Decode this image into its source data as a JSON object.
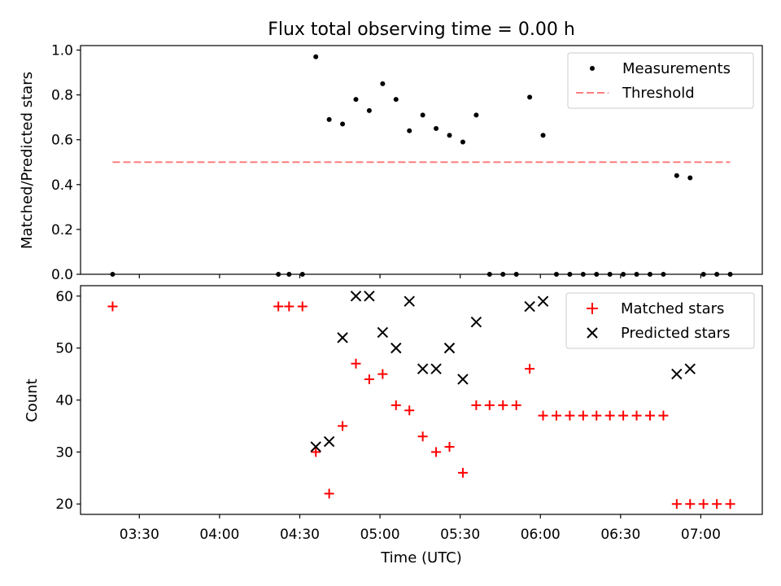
{
  "chart_data": [
    {
      "type": "scatter",
      "title": "Flux total observing time = 0.00 h",
      "ylabel": "Matched/Predicted stars",
      "ylim": [
        0,
        1.02
      ],
      "yticks": [
        "0.0",
        "0.2",
        "0.4",
        "0.6",
        "0.8",
        "1.0"
      ],
      "grid": false,
      "legend_position": "upper right",
      "series": [
        {
          "name": "Measurements",
          "marker": "dot",
          "color": "#000000",
          "x": [
            "03:20",
            "04:22",
            "04:26",
            "04:31",
            "04:36",
            "04:41",
            "04:46",
            "04:51",
            "04:56",
            "05:01",
            "05:06",
            "05:11",
            "05:16",
            "05:21",
            "05:26",
            "05:31",
            "05:36",
            "05:41",
            "05:46",
            "05:51",
            "05:56",
            "06:01",
            "06:06",
            "06:11",
            "06:16",
            "06:21",
            "06:26",
            "06:31",
            "06:36",
            "06:41",
            "06:46",
            "06:51",
            "06:56",
            "07:01",
            "07:06",
            "07:11"
          ],
          "values": [
            0,
            0,
            0,
            0,
            0.97,
            0.69,
            0.67,
            0.78,
            0.73,
            0.85,
            0.78,
            0.64,
            0.71,
            0.65,
            0.62,
            0.59,
            0.71,
            0,
            0,
            0,
            0.79,
            0.62,
            0,
            0,
            0,
            0,
            0,
            0,
            0,
            0,
            0,
            0.44,
            0.43,
            0,
            0,
            0
          ]
        },
        {
          "name": "Threshold",
          "marker": "dashed-line",
          "color": "#ff7f7f",
          "x": [
            "03:20",
            "07:11"
          ],
          "values": [
            0.5,
            0.5
          ]
        }
      ]
    },
    {
      "type": "scatter",
      "xlabel": "Time (UTC)",
      "ylabel": "Count",
      "ylim": [
        18,
        62
      ],
      "yticks": [
        "20",
        "30",
        "40",
        "50",
        "60"
      ],
      "xticks": [
        "03:30",
        "04:00",
        "04:30",
        "05:00",
        "05:30",
        "06:00",
        "06:30",
        "07:00"
      ],
      "grid": false,
      "legend_position": "upper right",
      "series": [
        {
          "name": "Matched stars",
          "marker": "plus",
          "color": "#ff0000",
          "x": [
            "03:20",
            "04:22",
            "04:26",
            "04:31",
            "04:36",
            "04:41",
            "04:46",
            "04:51",
            "04:56",
            "05:01",
            "05:06",
            "05:11",
            "05:16",
            "05:21",
            "05:26",
            "05:31",
            "05:36",
            "05:41",
            "05:46",
            "05:51",
            "05:56",
            "06:01",
            "06:06",
            "06:11",
            "06:16",
            "06:21",
            "06:26",
            "06:31",
            "06:36",
            "06:41",
            "06:46",
            "06:51",
            "06:56",
            "07:01",
            "07:06",
            "07:11"
          ],
          "values": [
            58,
            58,
            58,
            58,
            30,
            22,
            35,
            47,
            44,
            45,
            39,
            38,
            33,
            30,
            31,
            26,
            39,
            39,
            39,
            39,
            46,
            37,
            37,
            37,
            37,
            37,
            37,
            37,
            37,
            37,
            37,
            20,
            20,
            20,
            20,
            20
          ]
        },
        {
          "name": "Predicted stars",
          "marker": "x",
          "color": "#000000",
          "x": [
            "04:36",
            "04:41",
            "04:46",
            "04:51",
            "04:56",
            "05:01",
            "05:06",
            "05:11",
            "05:16",
            "05:21",
            "05:26",
            "05:31",
            "05:36",
            "05:56",
            "06:01",
            "06:51",
            "06:56"
          ],
          "values": [
            31,
            32,
            52,
            60,
            60,
            53,
            50,
            59,
            46,
            46,
            50,
            44,
            55,
            58,
            59,
            45,
            46
          ]
        }
      ]
    }
  ]
}
